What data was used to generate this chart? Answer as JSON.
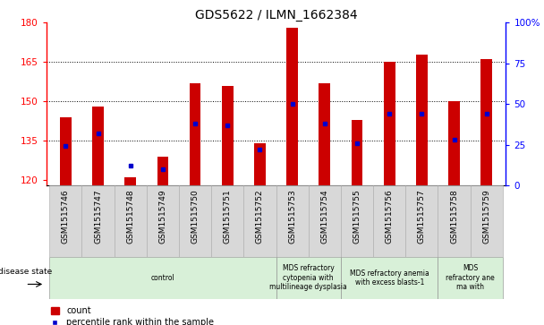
{
  "title": "GDS5622 / ILMN_1662384",
  "samples": [
    "GSM1515746",
    "GSM1515747",
    "GSM1515748",
    "GSM1515749",
    "GSM1515750",
    "GSM1515751",
    "GSM1515752",
    "GSM1515753",
    "GSM1515754",
    "GSM1515755",
    "GSM1515756",
    "GSM1515757",
    "GSM1515758",
    "GSM1515759"
  ],
  "counts": [
    144,
    148,
    121,
    129,
    157,
    156,
    134,
    178,
    157,
    143,
    165,
    168,
    150,
    166
  ],
  "percentile_ranks": [
    24,
    32,
    12,
    10,
    38,
    37,
    22,
    50,
    38,
    26,
    44,
    44,
    28,
    44
  ],
  "ylim_left": [
    118,
    180
  ],
  "ylim_right": [
    0,
    100
  ],
  "yticks_left": [
    120,
    135,
    150,
    165,
    180
  ],
  "yticks_right": [
    0,
    25,
    50,
    75,
    100
  ],
  "ytick_right_labels": [
    "0",
    "25",
    "50",
    "75",
    "100%"
  ],
  "bar_color": "#cc0000",
  "dot_color": "#0000cc",
  "bar_bottom": 118,
  "bar_width": 0.35,
  "groups": [
    {
      "label": "control",
      "start": 0,
      "end": 7,
      "color": "#d8f0d8"
    },
    {
      "label": "MDS refractory\ncytopenia with\nmultilineage dysplasia",
      "start": 7,
      "end": 9,
      "color": "#d8f0d8"
    },
    {
      "label": "MDS refractory anemia\nwith excess blasts-1",
      "start": 9,
      "end": 12,
      "color": "#d8f0d8"
    },
    {
      "label": "MDS\nrefractory ane\nma with",
      "start": 12,
      "end": 14,
      "color": "#d8f0d8"
    }
  ],
  "disease_state_label": "disease state",
  "legend_count_label": "count",
  "legend_percentile_label": "percentile rank within the sample",
  "background_color": "#ffffff",
  "tick_bg_color": "#d8d8d8",
  "grid_lines": [
    135,
    150,
    165
  ],
  "title_fontsize": 10,
  "tick_label_fontsize": 6.5,
  "axis_tick_fontsize": 7.5,
  "disease_fontsize": 5.5,
  "legend_fontsize": 7
}
